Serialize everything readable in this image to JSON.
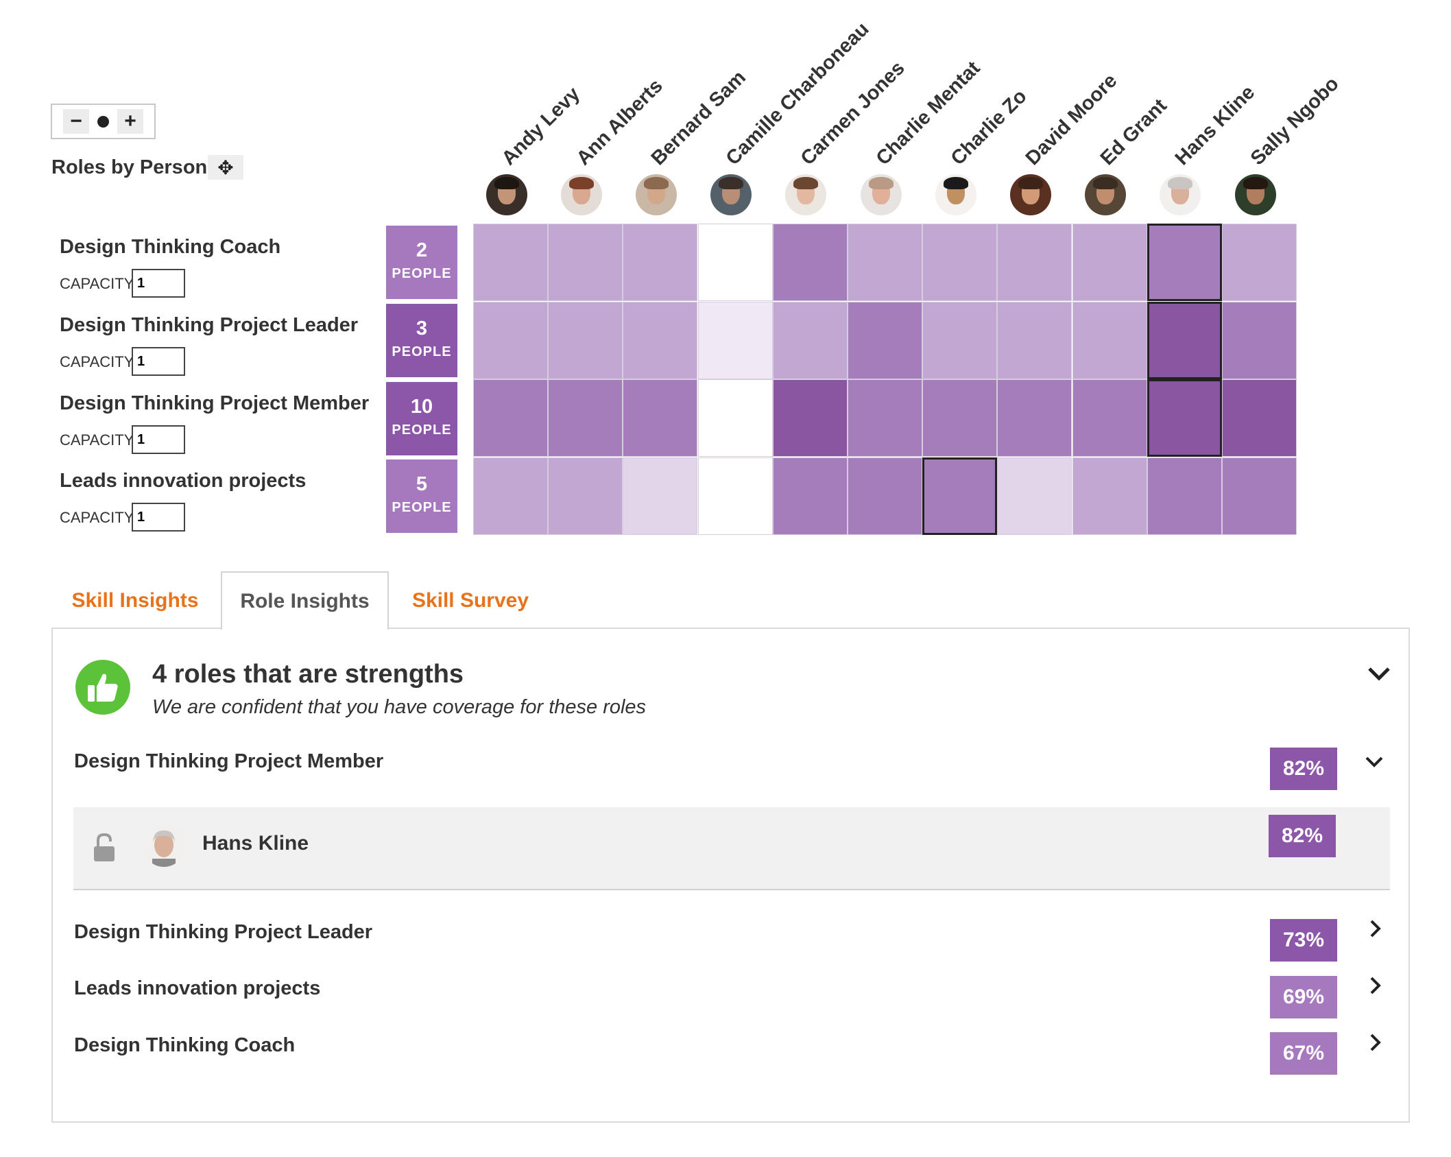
{
  "zoom": {
    "minus": "−",
    "plus": "+"
  },
  "heatmap": {
    "title": "Roles by Person",
    "people": [
      {
        "name": "Andy Levy",
        "avatar_bg": "#3a2f28",
        "skin": "#c49478",
        "hair": "#1e1611"
      },
      {
        "name": "Ann Alberts",
        "avatar_bg": "#e4dcd6",
        "skin": "#d8a890",
        "hair": "#7a4128"
      },
      {
        "name": "Bernard Sam",
        "avatar_bg": "#c9b8a6",
        "skin": "#d3a78a",
        "hair": "#8c6a50"
      },
      {
        "name": "Camille Charboneau",
        "avatar_bg": "#54606a",
        "skin": "#b88f76",
        "hair": "#3b3029"
      },
      {
        "name": "Carmen Jones",
        "avatar_bg": "#ece6e1",
        "skin": "#e2b8a0",
        "hair": "#6b4630"
      },
      {
        "name": "Charlie Mentat",
        "avatar_bg": "#e7e3e0",
        "skin": "#e1b09a",
        "hair": "#b89a85"
      },
      {
        "name": "Charlie Zo",
        "avatar_bg": "#f4f1ef",
        "skin": "#c09060",
        "hair": "#1a1a1a"
      },
      {
        "name": "David Moore",
        "avatar_bg": "#5a3020",
        "skin": "#d29a76",
        "hair": "#3c2418"
      },
      {
        "name": "Ed Grant",
        "avatar_bg": "#564636",
        "skin": "#c08e6e",
        "hair": "#3a2d22"
      },
      {
        "name": "Hans Kline",
        "avatar_bg": "#f2f0ee",
        "skin": "#d9b09a",
        "hair": "#c9c5c2"
      },
      {
        "name": "Sally Ngobo",
        "avatar_bg": "#2d3f2a",
        "skin": "#b07d5e",
        "hair": "#241810"
      }
    ],
    "roles": [
      {
        "name": "Design Thinking Coach",
        "capacity_label": "CAPACITY",
        "capacity": "1",
        "people_count": "2",
        "people_label": "PEOPLE",
        "box_color": "#a678bd",
        "cells": [
          "#c3a7d3",
          "#c3a7d3",
          "#c3a7d3",
          "#ffffff",
          "#a67dbb",
          "#c3a7d3",
          "#c3a7d3",
          "#c3a7d3",
          "#c3a7d3",
          "#a67dbb",
          "#c3a7d3"
        ]
      },
      {
        "name": "Design Thinking Project Leader",
        "capacity_label": "CAPACITY",
        "capacity": "1",
        "people_count": "3",
        "people_label": "PEOPLE",
        "box_color": "#8c57a8",
        "cells": [
          "#c3a7d3",
          "#c3a7d3",
          "#c3a7d3",
          "#f0e8f5",
          "#c3a7d3",
          "#a67dbb",
          "#c3a7d3",
          "#c3a7d3",
          "#c3a7d3",
          "#8a56a2",
          "#a67dbb"
        ]
      },
      {
        "name": "Design Thinking Project Member",
        "capacity_label": "CAPACITY",
        "capacity": "1",
        "people_count": "10",
        "people_label": "PEOPLE",
        "box_color": "#8c57a8",
        "cells": [
          "#a67dbb",
          "#a67dbb",
          "#a67dbb",
          "#ffffff",
          "#8a56a2",
          "#a67dbb",
          "#a67dbb",
          "#a67dbb",
          "#a67dbb",
          "#8a56a2",
          "#8a56a2"
        ]
      },
      {
        "name": "Leads innovation projects",
        "capacity_label": "CAPACITY",
        "capacity": "1",
        "people_count": "5",
        "people_label": "PEOPLE",
        "box_color": "#a678bd",
        "cells": [
          "#c3a7d3",
          "#c3a7d3",
          "#e2d5ea",
          "#ffffff",
          "#a67dbb",
          "#a67dbb",
          "#a67dbb",
          "#e2d5ea",
          "#c3a7d3",
          "#a67dbb",
          "#a67dbb"
        ]
      }
    ]
  },
  "tabs": [
    {
      "label": "Skill Insights"
    },
    {
      "label": "Role Insights"
    },
    {
      "label": "Skill Survey"
    }
  ],
  "insights": {
    "title": "4 roles that are strengths",
    "subtitle": "We are confident that you have coverage for these roles",
    "accent_green": "#5cc23a",
    "roles": [
      {
        "name": "Design Thinking Project Member",
        "pct": "82%",
        "color": "#8c57a8"
      },
      {
        "name": "Design Thinking Project Leader",
        "pct": "73%",
        "color": "#8c57a8"
      },
      {
        "name": "Leads innovation projects",
        "pct": "69%",
        "color": "#a678bd"
      },
      {
        "name": "Design Thinking Coach",
        "pct": "67%",
        "color": "#a678bd"
      }
    ],
    "expanded_person": {
      "name": "Hans Kline",
      "pct": "82%",
      "color": "#8c57a8"
    }
  }
}
